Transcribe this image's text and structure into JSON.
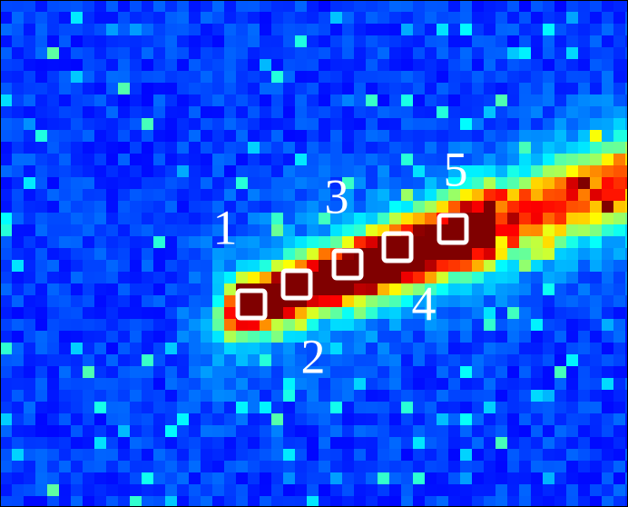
{
  "markers": [
    {
      "label": "1"
    },
    {
      "label": "2"
    },
    {
      "label": "3"
    },
    {
      "label": "4"
    },
    {
      "label": "5"
    }
  ]
}
